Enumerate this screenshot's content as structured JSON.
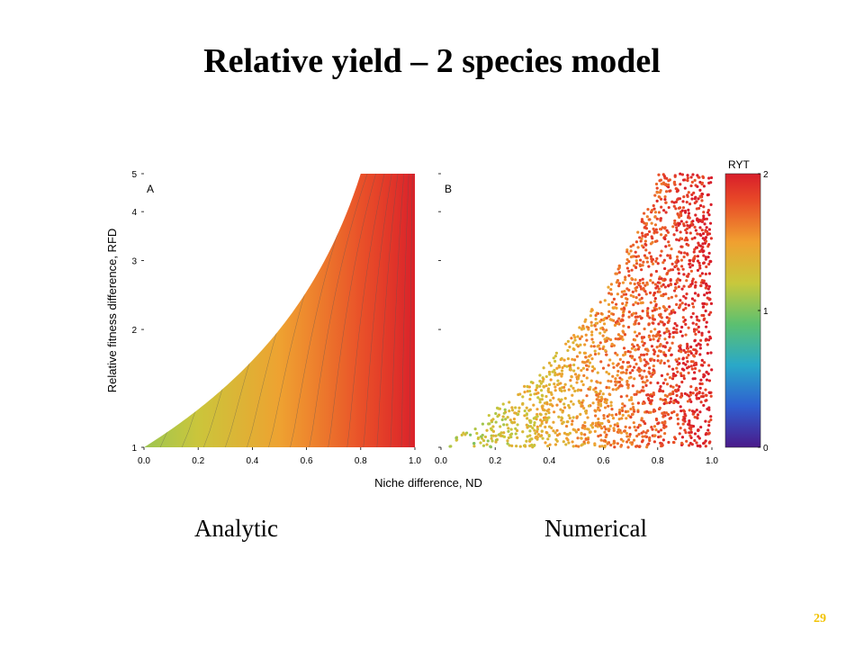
{
  "title": "Relative yield – 2 species model",
  "captions": {
    "left": "Analytic",
    "right": "Numerical"
  },
  "page_number": "29",
  "chart_data": {
    "type": "heatmap",
    "xlabel": "Niche difference, ND",
    "ylabel": "Relative fitness difference, RFD",
    "xlim": [
      0,
      1
    ],
    "ylim": [
      1,
      5
    ],
    "y_scale": "log",
    "x_ticks": [
      "0.0",
      "0.2",
      "0.4",
      "0.6",
      "0.8",
      "1.0"
    ],
    "y_ticks": [
      "1",
      "2",
      "3",
      "4",
      "5"
    ],
    "panels": [
      {
        "label": "A",
        "caption": "Analytic",
        "style": "continuous-with-contours"
      },
      {
        "label": "B",
        "caption": "Numerical",
        "style": "scatter-points"
      }
    ],
    "feasibility_boundary": "RFD = 1 / (1 - ND)",
    "colorbar": {
      "title": "RYT",
      "range": [
        0,
        2
      ],
      "ticks": [
        "0",
        "1",
        "2"
      ],
      "stops": [
        {
          "value": 0.0,
          "color": "#4a1a8a"
        },
        {
          "value": 0.3,
          "color": "#2f5fd0"
        },
        {
          "value": 0.6,
          "color": "#2aa8c8"
        },
        {
          "value": 0.9,
          "color": "#5cc070"
        },
        {
          "value": 1.2,
          "color": "#c8c83c"
        },
        {
          "value": 1.5,
          "color": "#f0a030"
        },
        {
          "value": 1.8,
          "color": "#e84a28"
        },
        {
          "value": 2.0,
          "color": "#d81e2a"
        }
      ]
    }
  }
}
